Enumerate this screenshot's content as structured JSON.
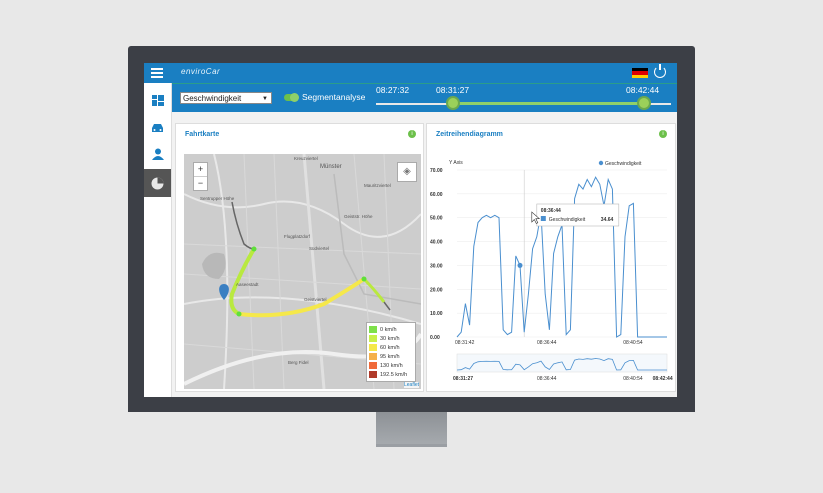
{
  "app": {
    "logo": "enviroCar"
  },
  "toolbar": {
    "parameter": "Geschwindigkeit",
    "segment_label": "Segmentanalyse",
    "time_start": "08:27:32",
    "time_handle1": "08:31:27",
    "time_handle2": "08:42:44"
  },
  "map_panel": {
    "title": "Fahrtkarte",
    "info_icon": "info-icon",
    "zoom_in": "+",
    "zoom_out": "−",
    "attribution": "Leaflet",
    "labels": [
      "Kreuzviertel",
      "Mauritzviertel",
      "Münster",
      "Sentrupper Höhe",
      "Aaseestadt",
      "Südviertel",
      "Geistviertel",
      "Berg Fidel",
      "Flugplatzdorf",
      "Geiststr. Höhe"
    ],
    "legend": [
      {
        "label": "0 km/h",
        "color": "#7ee04a"
      },
      {
        "label": "30 km/h",
        "color": "#c8f04a"
      },
      {
        "label": "60 km/h",
        "color": "#f5e84a"
      },
      {
        "label": "95 km/h",
        "color": "#f5b04a"
      },
      {
        "label": "130 km/h",
        "color": "#f06a3a"
      },
      {
        "label": "192.5 km/h",
        "color": "#b03a2a"
      }
    ]
  },
  "chart_panel": {
    "title": "Zeitreihendiagramm",
    "info_icon": "info-icon",
    "tooltip_time": "08:36:44",
    "tooltip_series": "Geschwindigkeit",
    "tooltip_value": "34.64",
    "nav_labels": [
      "08:31:27",
      "08:36:44",
      "08:40:54",
      "08:42:44"
    ]
  },
  "chart_data": {
    "type": "line",
    "ylabel": "Y Axis",
    "ylim": [
      0,
      70
    ],
    "yticks": [
      "70.00",
      "60.00",
      "50.00",
      "40.00",
      "30.00",
      "20.00",
      "10.00",
      "0.00"
    ],
    "xtick_labels": [
      "08:31:42",
      "08:36:44",
      "08:40:54"
    ],
    "series": [
      {
        "name": "Geschwindigkeit",
        "color": "#4a8fcf",
        "x": [
          0,
          2,
          4,
          6,
          8,
          10,
          12,
          14,
          16,
          18,
          20,
          22,
          24,
          26,
          28,
          30,
          32,
          34,
          36,
          38,
          40,
          42,
          44,
          46,
          48,
          50,
          52,
          54,
          56,
          58,
          60,
          62,
          64,
          66,
          68,
          70,
          72,
          74,
          76,
          78,
          80,
          82,
          84,
          86,
          88,
          90,
          92,
          94,
          96,
          98,
          100
        ],
        "y": [
          0,
          2,
          14,
          5,
          38,
          48,
          50,
          51,
          50,
          51,
          50,
          3,
          1,
          2,
          34,
          30,
          2,
          18,
          37,
          42,
          52,
          18,
          3,
          35,
          42,
          47,
          1,
          3,
          58,
          64,
          62,
          66,
          63,
          67,
          64,
          55,
          66,
          62,
          0,
          1,
          42,
          55,
          56,
          0,
          0,
          0,
          0,
          0,
          0,
          0,
          0
        ]
      }
    ]
  },
  "sidebar": {
    "items": [
      "dashboard-icon",
      "car-icon",
      "user-icon",
      "chart-pie-icon"
    ]
  }
}
